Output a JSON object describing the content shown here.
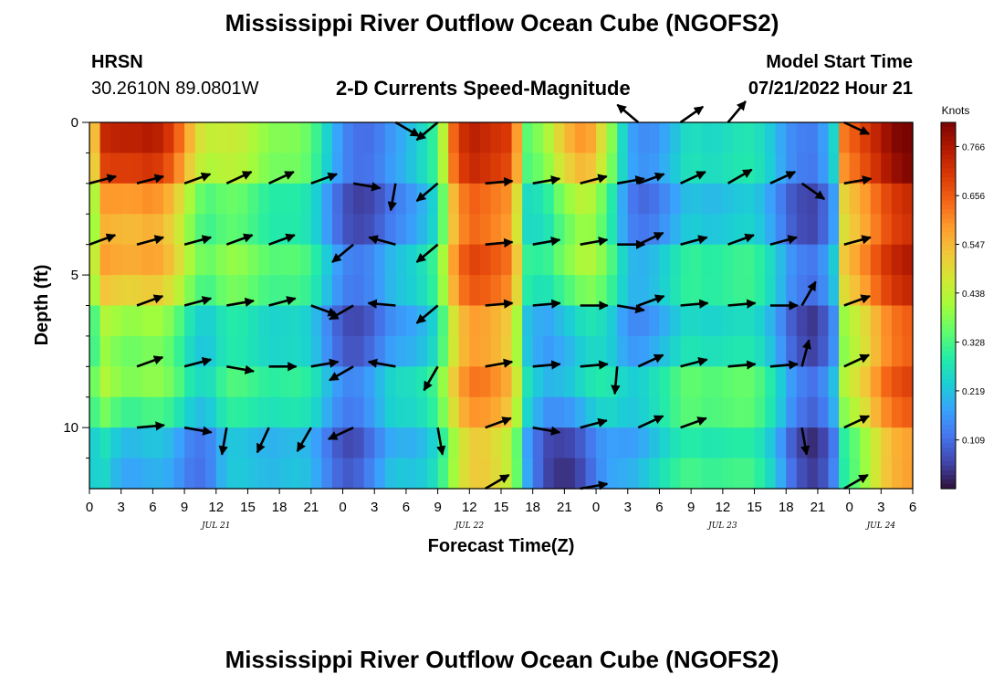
{
  "header": {
    "title": "Mississippi River Outflow Ocean Cube (NGOFS2)",
    "station_name": "HRSN",
    "station_coords": "30.2610N  89.0801W",
    "plot_title": "2-D Currents Speed-Magnitude",
    "model_start_label": "Model Start Time",
    "model_start_value": "07/21/2022 Hour 21"
  },
  "footer": {
    "title": "Mississippi River Outflow Ocean Cube (NGOFS2)"
  },
  "chart_data": {
    "type": "heatmap",
    "title": "2-D Currents Speed-Magnitude",
    "xlabel": "Forecast Time(Z)",
    "ylabel": "Depth (ft)",
    "x_range_hours": [
      0,
      78
    ],
    "y_range_ft": [
      0,
      12
    ],
    "x_tick_hours": [
      0,
      3,
      6,
      9,
      12,
      15,
      18,
      21,
      24,
      27,
      30,
      33,
      36,
      39,
      42,
      45,
      48,
      51,
      54,
      57,
      60,
      63,
      66,
      69,
      72,
      75,
      78
    ],
    "x_tick_labels": [
      "0",
      "3",
      "6",
      "9",
      "12",
      "15",
      "18",
      "21",
      "0",
      "3",
      "6",
      "9",
      "12",
      "15",
      "18",
      "21",
      "0",
      "3",
      "6",
      "9",
      "12",
      "15",
      "18",
      "21",
      "0",
      "3",
      "6"
    ],
    "date_labels": [
      {
        "hour": 12,
        "text": "JUL 21"
      },
      {
        "hour": 36,
        "text": "JUL 22"
      },
      {
        "hour": 60,
        "text": "JUL 23"
      },
      {
        "hour": 75,
        "text": "JUL 24"
      }
    ],
    "y_tick_values": [
      0,
      5,
      10
    ],
    "y_tick_labels": [
      "0",
      "5",
      "10"
    ],
    "y_minor_ticks": [
      1,
      2,
      3,
      4,
      6,
      7,
      8,
      9,
      11
    ],
    "colorbar": {
      "units": "Knots",
      "range": [
        0.0,
        0.82
      ],
      "ticks": [
        0.766,
        0.656,
        0.547,
        0.438,
        0.328,
        0.219,
        0.109
      ],
      "tick_labels": [
        "0.766",
        "0.656",
        "0.547",
        "0.438",
        "0.328",
        "0.219",
        "0.109"
      ],
      "colors": [
        "#30123b",
        "#4145ab",
        "#4675ed",
        "#39a2fc",
        "#1bcfd4",
        "#24eca6",
        "#61fc6c",
        "#a4fc3b",
        "#d1e834",
        "#f3c63a",
        "#fe9b2d",
        "#f36315",
        "#d93806",
        "#b11901",
        "#7a0402"
      ]
    },
    "time_profile": [
      {
        "t": 0,
        "top": 0.3,
        "bot": 0.2
      },
      {
        "t": 1,
        "top": 0.7,
        "bot": 0.26
      },
      {
        "t": 3,
        "top": 0.76,
        "bot": 0.2
      },
      {
        "t": 6,
        "top": 0.74,
        "bot": 0.18
      },
      {
        "t": 8,
        "top": 0.66,
        "bot": 0.16
      },
      {
        "t": 9.5,
        "top": 0.55,
        "bot": 0.14
      },
      {
        "t": 11,
        "top": 0.45,
        "bot": 0.14
      },
      {
        "t": 13,
        "top": 0.42,
        "bot": 0.22
      },
      {
        "t": 15,
        "top": 0.4,
        "bot": 0.22
      },
      {
        "t": 17,
        "top": 0.38,
        "bot": 0.24
      },
      {
        "t": 19,
        "top": 0.36,
        "bot": 0.24
      },
      {
        "t": 21,
        "top": 0.3,
        "bot": 0.2
      },
      {
        "t": 23,
        "top": 0.18,
        "bot": 0.14
      },
      {
        "t": 25,
        "top": 0.1,
        "bot": 0.12
      },
      {
        "t": 27,
        "top": 0.06,
        "bot": 0.16
      },
      {
        "t": 29,
        "top": 0.12,
        "bot": 0.24
      },
      {
        "t": 31,
        "top": 0.22,
        "bot": 0.26
      },
      {
        "t": 33,
        "top": 0.3,
        "bot": 0.3
      },
      {
        "t": 34.5,
        "top": 0.6,
        "bot": 0.4
      },
      {
        "t": 36,
        "top": 0.72,
        "bot": 0.52
      },
      {
        "t": 38,
        "top": 0.72,
        "bot": 0.55
      },
      {
        "t": 40,
        "top": 0.68,
        "bot": 0.45
      },
      {
        "t": 41.5,
        "top": 0.3,
        "bot": 0.18
      },
      {
        "t": 43,
        "top": 0.36,
        "bot": 0.06
      },
      {
        "t": 45,
        "top": 0.55,
        "bot": 0.05
      },
      {
        "t": 47,
        "top": 0.6,
        "bot": 0.08
      },
      {
        "t": 49,
        "top": 0.4,
        "bot": 0.16
      },
      {
        "t": 51,
        "top": 0.16,
        "bot": 0.22
      },
      {
        "t": 53,
        "top": 0.12,
        "bot": 0.28
      },
      {
        "t": 55,
        "top": 0.14,
        "bot": 0.3
      },
      {
        "t": 57,
        "top": 0.22,
        "bot": 0.34
      },
      {
        "t": 60,
        "top": 0.24,
        "bot": 0.36
      },
      {
        "t": 63,
        "top": 0.22,
        "bot": 0.32
      },
      {
        "t": 65,
        "top": 0.18,
        "bot": 0.26
      },
      {
        "t": 67,
        "top": 0.12,
        "bot": 0.12
      },
      {
        "t": 69,
        "top": 0.08,
        "bot": 0.04
      },
      {
        "t": 70.5,
        "top": 0.2,
        "bot": 0.14
      },
      {
        "t": 71.5,
        "top": 0.6,
        "bot": 0.3
      },
      {
        "t": 73,
        "top": 0.68,
        "bot": 0.4
      },
      {
        "t": 75,
        "top": 0.74,
        "bot": 0.52
      },
      {
        "t": 78,
        "top": 0.8,
        "bot": 0.58
      }
    ],
    "vector_depths_ft": [
      2,
      4,
      6,
      8,
      10
    ],
    "vectors": [
      {
        "t": 0,
        "d": 2,
        "angle": 15
      },
      {
        "t": 0,
        "d": 4,
        "angle": 20
      },
      {
        "t": 4.5,
        "d": 2,
        "angle": 15
      },
      {
        "t": 4.5,
        "d": 4,
        "angle": 15
      },
      {
        "t": 4.5,
        "d": 6,
        "angle": 20
      },
      {
        "t": 4.5,
        "d": 8,
        "angle": 20
      },
      {
        "t": 4.5,
        "d": 10,
        "angle": 5
      },
      {
        "t": 9,
        "d": 2,
        "angle": 20
      },
      {
        "t": 9,
        "d": 4,
        "angle": 15
      },
      {
        "t": 9,
        "d": 6,
        "angle": 15
      },
      {
        "t": 9,
        "d": 8,
        "angle": 15
      },
      {
        "t": 9,
        "d": 10,
        "angle": -10
      },
      {
        "t": 13,
        "d": 2,
        "angle": 25
      },
      {
        "t": 13,
        "d": 4,
        "angle": 20
      },
      {
        "t": 13,
        "d": 6,
        "angle": 10
      },
      {
        "t": 13,
        "d": 8,
        "angle": -10
      },
      {
        "t": 13,
        "d": 10,
        "angle": -100
      },
      {
        "t": 17,
        "d": 2,
        "angle": 25
      },
      {
        "t": 17,
        "d": 4,
        "angle": 20
      },
      {
        "t": 17,
        "d": 6,
        "angle": 15
      },
      {
        "t": 17,
        "d": 8,
        "angle": 0
      },
      {
        "t": 17,
        "d": 10,
        "angle": -115
      },
      {
        "t": 21,
        "d": 2,
        "angle": 20
      },
      {
        "t": 21,
        "d": 6,
        "angle": -20
      },
      {
        "t": 21,
        "d": 8,
        "angle": 10
      },
      {
        "t": 21,
        "d": 10,
        "angle": -120
      },
      {
        "t": 25,
        "d": 2,
        "angle": -10
      },
      {
        "t": 25,
        "d": 4,
        "angle": -140
      },
      {
        "t": 25,
        "d": 6,
        "angle": -150
      },
      {
        "t": 25,
        "d": 8,
        "angle": -150
      },
      {
        "t": 25,
        "d": 10,
        "angle": -155
      },
      {
        "t": 29,
        "d": 0,
        "angle": -30
      },
      {
        "t": 29,
        "d": 2,
        "angle": -100
      },
      {
        "t": 29,
        "d": 4,
        "angle": 165
      },
      {
        "t": 29,
        "d": 6,
        "angle": 175
      },
      {
        "t": 29,
        "d": 8,
        "angle": 170
      },
      {
        "t": 33,
        "d": 0,
        "angle": -140
      },
      {
        "t": 33,
        "d": 2,
        "angle": -140
      },
      {
        "t": 33,
        "d": 4,
        "angle": -140
      },
      {
        "t": 33,
        "d": 6,
        "angle": -140
      },
      {
        "t": 33,
        "d": 8,
        "angle": -120
      },
      {
        "t": 33,
        "d": 10,
        "angle": -80
      },
      {
        "t": 37.5,
        "d": 2,
        "angle": 5
      },
      {
        "t": 37.5,
        "d": 4,
        "angle": 5
      },
      {
        "t": 37.5,
        "d": 6,
        "angle": 5
      },
      {
        "t": 37.5,
        "d": 8,
        "angle": 10
      },
      {
        "t": 37.5,
        "d": 10,
        "angle": 20
      },
      {
        "t": 37.5,
        "d": 12,
        "angle": 30
      },
      {
        "t": 42,
        "d": 2,
        "angle": 10
      },
      {
        "t": 42,
        "d": 4,
        "angle": 10
      },
      {
        "t": 42,
        "d": 6,
        "angle": 5
      },
      {
        "t": 42,
        "d": 8,
        "angle": 5
      },
      {
        "t": 42,
        "d": 10,
        "angle": -10
      },
      {
        "t": 46.5,
        "d": 2,
        "angle": 15
      },
      {
        "t": 46.5,
        "d": 4,
        "angle": 10
      },
      {
        "t": 46.5,
        "d": 6,
        "angle": 0
      },
      {
        "t": 46.5,
        "d": 8,
        "angle": 5
      },
      {
        "t": 46.5,
        "d": 10,
        "angle": 15
      },
      {
        "t": 46.5,
        "d": 12,
        "angle": 10
      },
      {
        "t": 50,
        "d": 2,
        "angle": 10
      },
      {
        "t": 50,
        "d": 4,
        "angle": 0
      },
      {
        "t": 50,
        "d": 6,
        "angle": -10
      },
      {
        "t": 50,
        "d": 8,
        "angle": -95
      },
      {
        "t": 52,
        "d": 0,
        "angle": 140
      },
      {
        "t": 52,
        "d": 2,
        "angle": 20
      },
      {
        "t": 52,
        "d": 4,
        "angle": 25
      },
      {
        "t": 52,
        "d": 6,
        "angle": 20
      },
      {
        "t": 52,
        "d": 8,
        "angle": 25
      },
      {
        "t": 52,
        "d": 10,
        "angle": 25
      },
      {
        "t": 56,
        "d": 0,
        "angle": 35
      },
      {
        "t": 56,
        "d": 2,
        "angle": 25
      },
      {
        "t": 56,
        "d": 4,
        "angle": 15
      },
      {
        "t": 56,
        "d": 6,
        "angle": 5
      },
      {
        "t": 56,
        "d": 8,
        "angle": 15
      },
      {
        "t": 56,
        "d": 10,
        "angle": 20
      },
      {
        "t": 60.5,
        "d": 0,
        "angle": 50
      },
      {
        "t": 60.5,
        "d": 2,
        "angle": 30
      },
      {
        "t": 60.5,
        "d": 4,
        "angle": 20
      },
      {
        "t": 60.5,
        "d": 6,
        "angle": 5
      },
      {
        "t": 60.5,
        "d": 8,
        "angle": 5
      },
      {
        "t": 64.5,
        "d": 2,
        "angle": 25
      },
      {
        "t": 64.5,
        "d": 4,
        "angle": 15
      },
      {
        "t": 64.5,
        "d": 6,
        "angle": 0
      },
      {
        "t": 64.5,
        "d": 8,
        "angle": 5
      },
      {
        "t": 67.5,
        "d": 2,
        "angle": -35
      },
      {
        "t": 67.5,
        "d": 6,
        "angle": 60
      },
      {
        "t": 67.5,
        "d": 8,
        "angle": 75
      },
      {
        "t": 67.5,
        "d": 10,
        "angle": -80
      },
      {
        "t": 71.5,
        "d": 0,
        "angle": -25
      },
      {
        "t": 71.5,
        "d": 2,
        "angle": 10
      },
      {
        "t": 71.5,
        "d": 4,
        "angle": 15
      },
      {
        "t": 71.5,
        "d": 6,
        "angle": 20
      },
      {
        "t": 71.5,
        "d": 8,
        "angle": 25
      },
      {
        "t": 71.5,
        "d": 10,
        "angle": 25
      },
      {
        "t": 71.5,
        "d": 12,
        "angle": 30
      }
    ]
  }
}
